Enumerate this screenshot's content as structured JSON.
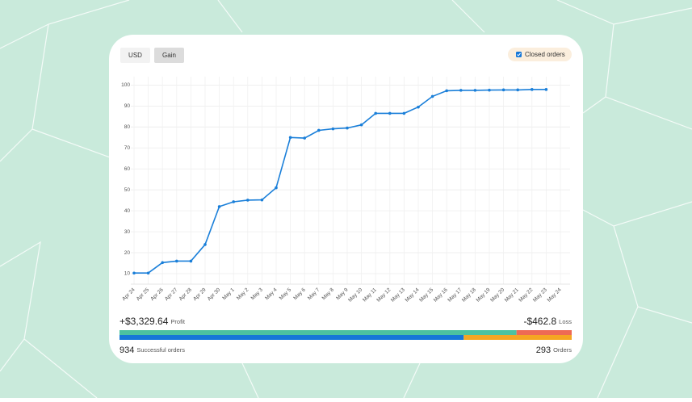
{
  "tabs": [
    "USD",
    "Gain"
  ],
  "filter": "Closed orders",
  "chart_data": {
    "type": "line",
    "categories": [
      "Apr 24",
      "Apr 25",
      "Apr 26",
      "Apr 27",
      "Apr 28",
      "Apr 29",
      "Apr 30",
      "May 1",
      "May 2",
      "May 3",
      "May 4",
      "May 5",
      "May 6",
      "May 7",
      "May 8",
      "May 9",
      "May 10",
      "May 11",
      "May 12",
      "May 13",
      "May 14",
      "May 15",
      "May 16",
      "May 17",
      "May 18",
      "May 19",
      "May 20",
      "May 21",
      "May 22",
      "May 23",
      "May 24"
    ],
    "values": [
      10.3,
      10.3,
      15.3,
      16,
      16,
      23.9,
      42,
      44.3,
      45.1,
      45.2,
      51,
      75,
      74.7,
      78.4,
      79.1,
      79.5,
      81,
      86.5,
      86.5,
      86.5,
      89.5,
      94.6,
      97.3,
      97.5,
      97.5,
      97.6,
      97.7,
      97.7,
      97.9,
      97.9,
      null
    ],
    "color": "#1a7fd9",
    "ylim": [
      5,
      104
    ],
    "yticks": [
      10,
      20,
      30,
      40,
      50,
      60,
      70,
      80,
      90,
      100
    ],
    "grid": true
  },
  "summary": {
    "profit": {
      "value": 3329.64,
      "label": "+$3,329.64",
      "name": "Profit",
      "color": "#4cc2a0"
    },
    "loss": {
      "value": 462.8,
      "label": "-$462.8",
      "name": "Loss",
      "color": "#ee6a55"
    },
    "successful": {
      "value": 934,
      "label": "934",
      "name": "Successful orders",
      "color": "#1677d8"
    },
    "orders": {
      "value": 293,
      "label": "293",
      "name": "Orders",
      "color": "#f5a623"
    }
  }
}
